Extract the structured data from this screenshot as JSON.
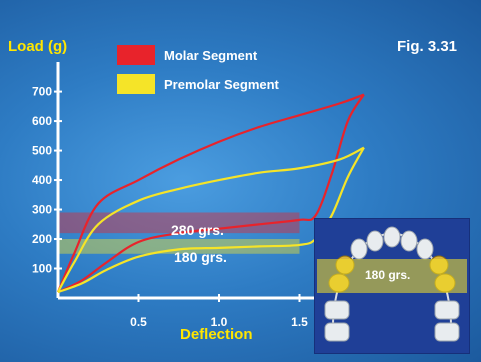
{
  "figure": {
    "label": "Fig. 3.31"
  },
  "colors": {
    "molar": "#e8232b",
    "premolar": "#f5e428",
    "axis": "#ffffff",
    "label": "#ffe600"
  },
  "chart_data": {
    "type": "line",
    "title": "",
    "xlabel": "Deflection",
    "ylabel": "Load (g)",
    "xlim": [
      0,
      2.0
    ],
    "ylim": [
      0,
      780
    ],
    "x_ticks": [
      "0.5",
      "1.0",
      "1.5"
    ],
    "x_tick_values": [
      0.5,
      1.0,
      1.5
    ],
    "y_ticks": [
      "100",
      "200",
      "300",
      "400",
      "500",
      "600",
      "700"
    ],
    "y_tick_values": [
      100,
      200,
      300,
      400,
      500,
      600,
      700
    ],
    "grid": false,
    "legend_position": "top-left",
    "series": [
      {
        "name": "Molar Segment",
        "color_key": "molar",
        "loading": [
          [
            0.0,
            20
          ],
          [
            0.1,
            150
          ],
          [
            0.25,
            320
          ],
          [
            0.5,
            400
          ],
          [
            0.75,
            470
          ],
          [
            1.0,
            530
          ],
          [
            1.25,
            580
          ],
          [
            1.5,
            620
          ],
          [
            1.75,
            660
          ],
          [
            1.9,
            690
          ]
        ],
        "unloading": [
          [
            1.9,
            690
          ],
          [
            1.8,
            600
          ],
          [
            1.7,
            420
          ],
          [
            1.6,
            280
          ],
          [
            1.5,
            265
          ],
          [
            1.25,
            250
          ],
          [
            1.0,
            235
          ],
          [
            0.75,
            220
          ],
          [
            0.5,
            190
          ],
          [
            0.3,
            120
          ],
          [
            0.15,
            60
          ],
          [
            0.0,
            20
          ]
        ]
      },
      {
        "name": "Premolar Segment",
        "color_key": "premolar",
        "loading": [
          [
            0.0,
            20
          ],
          [
            0.1,
            120
          ],
          [
            0.25,
            250
          ],
          [
            0.5,
            330
          ],
          [
            0.75,
            370
          ],
          [
            1.0,
            400
          ],
          [
            1.25,
            425
          ],
          [
            1.5,
            440
          ],
          [
            1.75,
            470
          ],
          [
            1.9,
            510
          ]
        ],
        "unloading": [
          [
            1.9,
            510
          ],
          [
            1.8,
            410
          ],
          [
            1.7,
            280
          ],
          [
            1.6,
            200
          ],
          [
            1.5,
            180
          ],
          [
            1.25,
            175
          ],
          [
            1.0,
            170
          ],
          [
            0.75,
            165
          ],
          [
            0.5,
            140
          ],
          [
            0.3,
            95
          ],
          [
            0.15,
            50
          ],
          [
            0.0,
            20
          ]
        ]
      }
    ],
    "bands": [
      {
        "label": "280 grs.",
        "y_range": [
          220,
          290
        ],
        "x_range": [
          0.0,
          1.5
        ],
        "color_key": "molar"
      },
      {
        "label": "180 grs.",
        "y_range": [
          150,
          200
        ],
        "x_range": [
          0.0,
          1.5
        ],
        "color_key": "premolar"
      }
    ]
  },
  "inset": {
    "label": "180 grs.",
    "band_color_key": "premolar"
  }
}
